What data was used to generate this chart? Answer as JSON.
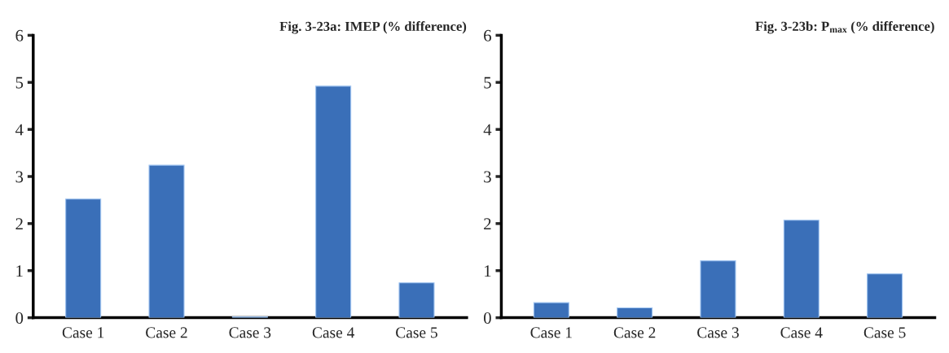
{
  "chart_data": [
    {
      "type": "bar",
      "title": "Fig. 3-23a: IMEP (% difference)",
      "categories": [
        "Case 1",
        "Case 2",
        "Case 3",
        "Case 4",
        "Case 5"
      ],
      "values": [
        2.52,
        3.24,
        0.02,
        4.92,
        0.74
      ],
      "color": "#3a6fb8",
      "ylim": [
        0,
        6
      ],
      "yticks": [
        0,
        1,
        2,
        3,
        4,
        5,
        6
      ],
      "grid": false
    },
    {
      "type": "bar",
      "title": "Fig. 3-23b: P$_{max}$ (% difference)",
      "categories": [
        "Case 1",
        "Case 2",
        "Case 3",
        "Case 4",
        "Case 5"
      ],
      "values": [
        0.32,
        0.21,
        1.21,
        2.07,
        0.93
      ],
      "color": "#3a6fb8",
      "ylim": [
        0,
        6
      ],
      "yticks": [
        0,
        1,
        2,
        3,
        4,
        5,
        6
      ],
      "grid": false
    }
  ]
}
